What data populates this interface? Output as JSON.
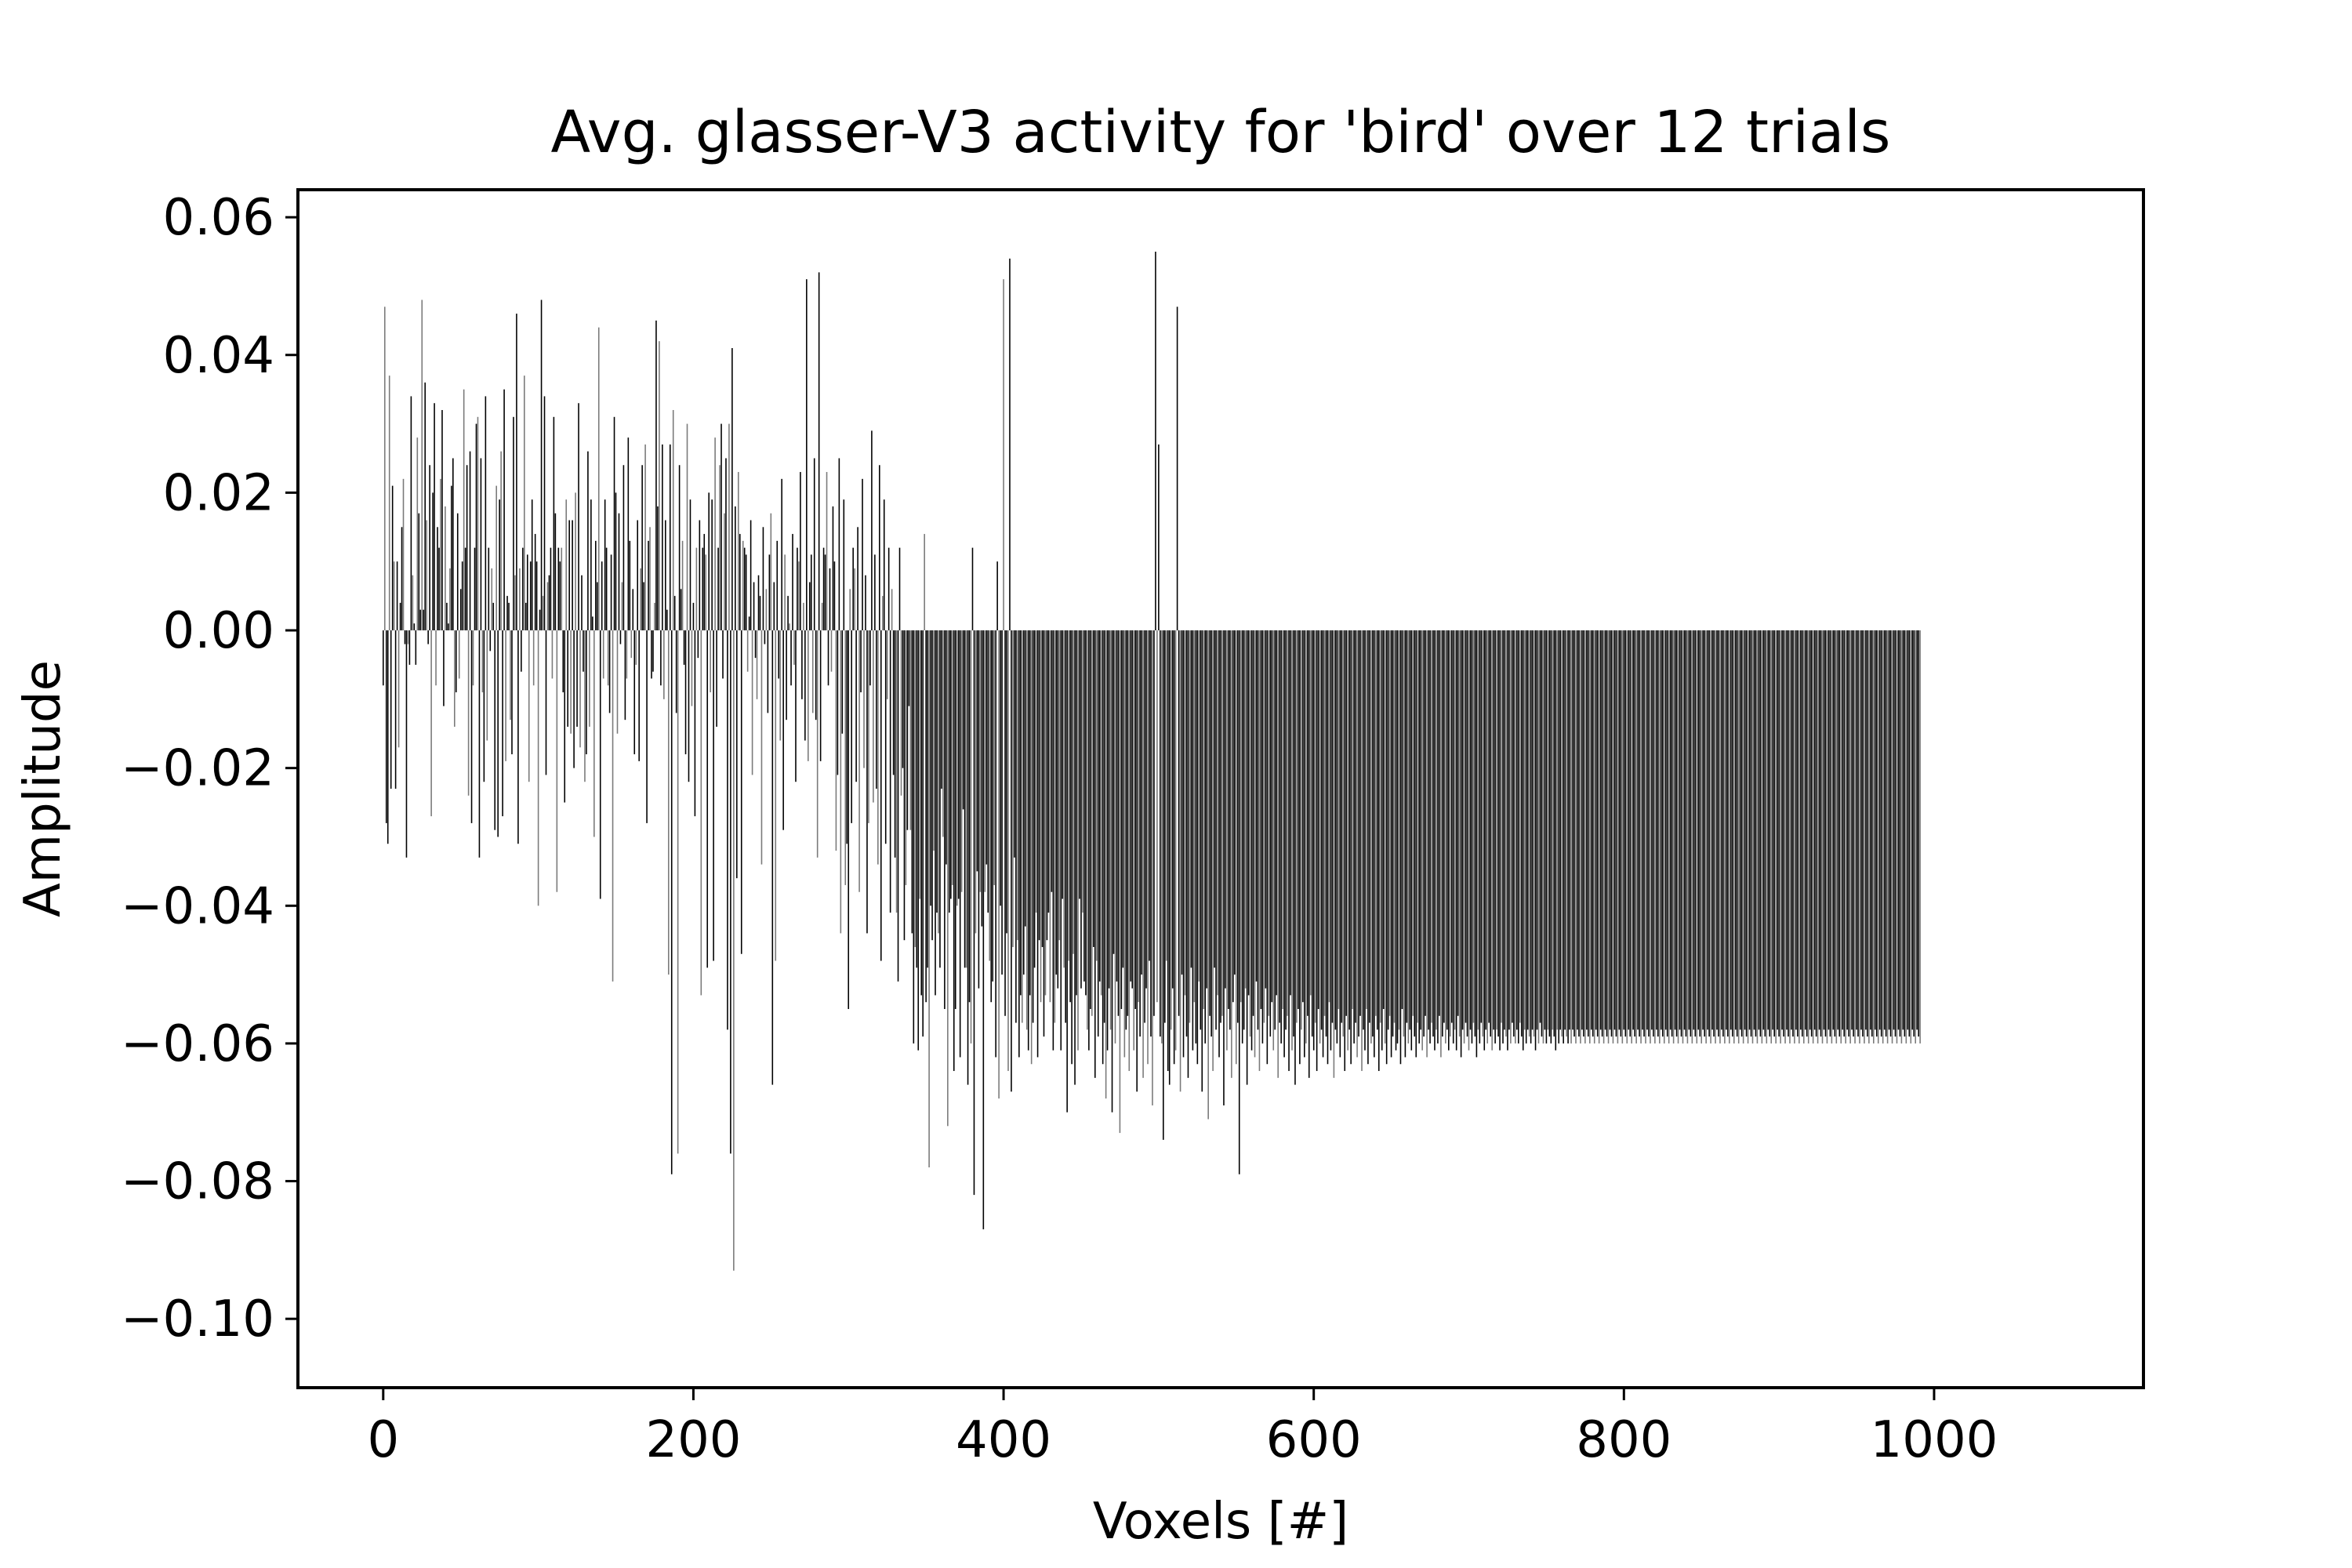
{
  "chart_data": {
    "type": "bar",
    "title": "Avg. glasser-V3 activity for 'bird' over 12 trials",
    "xlabel": "Voxels [#]",
    "ylabel": "Amplitude",
    "xlim": [
      -55,
      1135
    ],
    "ylim": [
      -0.11,
      0.064
    ],
    "x_ticks": [
      0,
      200,
      400,
      600,
      800,
      1000
    ],
    "x_tick_labels": [
      "0",
      "200",
      "400",
      "600",
      "800",
      "1000"
    ],
    "y_ticks": [
      0.06,
      0.04,
      0.02,
      0.0,
      -0.02,
      -0.04,
      -0.06,
      -0.08,
      -0.1
    ],
    "y_tick_labels": [
      "0.06",
      "0.04",
      "0.02",
      "0.00",
      "−0.02",
      "−0.04",
      "−0.06",
      "−0.08",
      "−0.10"
    ],
    "grid": false,
    "legend": "none",
    "colors": {
      "bar_dark": "#000000",
      "bar_light": "#7a7a7a"
    },
    "x_start": 0,
    "values": [
      -0.008,
      0.047,
      -0.028,
      -0.031,
      0.037,
      -0.023,
      0.021,
      0.01,
      -0.023,
      0.01,
      -0.017,
      0.004,
      0.015,
      0.022,
      -0.002,
      -0.033,
      -0.002,
      -0.005,
      0.034,
      0.008,
      0.001,
      -0.005,
      0.028,
      0.017,
      0.003,
      0.048,
      0.003,
      0.036,
      0.016,
      -0.002,
      0.024,
      -0.027,
      0.02,
      0.033,
      -0.008,
      0.015,
      0.012,
      0.022,
      0.032,
      -0.011,
      0.018,
      0.004,
      0.001,
      0.009,
      0.021,
      0.025,
      -0.014,
      -0.009,
      0.017,
      -0.007,
      0.006,
      0.01,
      0.035,
      0.012,
      0.024,
      -0.024,
      0.026,
      -0.028,
      -0.008,
      0.012,
      0.03,
      0.031,
      -0.033,
      0.025,
      -0.009,
      -0.022,
      0.034,
      -0.016,
      0.012,
      -0.003,
      0.009,
      0.004,
      -0.029,
      0.021,
      -0.03,
      0.019,
      0.026,
      -0.027,
      0.035,
      -0.019,
      0.005,
      0.004,
      -0.013,
      -0.018,
      0.031,
      0.008,
      0.046,
      -0.031,
      0.009,
      -0.006,
      0.012,
      0.037,
      0.004,
      0.011,
      -0.022,
      0.01,
      0.019,
      -0.008,
      0.014,
      0.01,
      -0.04,
      0.003,
      0.048,
      0.005,
      0.034,
      -0.021,
      0.007,
      0.008,
      0.012,
      -0.007,
      0.031,
      0.017,
      -0.038,
      0.012,
      0.01,
      0.012,
      -0.009,
      -0.025,
      0.019,
      -0.014,
      0.016,
      -0.015,
      0.016,
      -0.02,
      0.02,
      -0.014,
      0.033,
      -0.017,
      0.008,
      -0.006,
      -0.022,
      -0.018,
      0.026,
      -0.014,
      0.019,
      0.002,
      -0.03,
      0.013,
      0.007,
      0.044,
      -0.039,
      0.01,
      -0.007,
      0.019,
      0.012,
      -0.008,
      -0.012,
      0.011,
      -0.051,
      0.031,
      0.02,
      -0.015,
      0.017,
      -0.002,
      0.007,
      0.024,
      -0.013,
      -0.007,
      0.028,
      0.013,
      -0.004,
      0.006,
      -0.018,
      -0.005,
      0.016,
      -0.019,
      0.009,
      0.024,
      0.007,
      0.027,
      -0.028,
      0.013,
      0.015,
      -0.007,
      -0.006,
      0.004,
      0.045,
      0.018,
      0.042,
      -0.008,
      0.027,
      -0.01,
      0.016,
      0.003,
      -0.05,
      0.027,
      -0.079,
      0.032,
      0.005,
      -0.012,
      -0.076,
      0.024,
      0.006,
      0.013,
      -0.005,
      -0.018,
      0.03,
      -0.022,
      0.019,
      -0.011,
      0.004,
      -0.027,
      0.012,
      -0.004,
      0.016,
      -0.053,
      0.012,
      0.014,
      0.011,
      -0.049,
      0.02,
      -0.009,
      0.019,
      -0.048,
      0.028,
      -0.014,
      0.012,
      0.024,
      0.03,
      -0.007,
      0.017,
      0.025,
      -0.058,
      0.03,
      -0.076,
      0.041,
      -0.093,
      0.018,
      -0.036,
      0.023,
      0.014,
      -0.047,
      0.013,
      0.012,
      0.011,
      -0.006,
      0.002,
      0.016,
      -0.021,
      0.007,
      -0.004,
      -0.01,
      0.008,
      0.005,
      -0.034,
      0.015,
      -0.002,
      0.006,
      -0.012,
      0.011,
      0.017,
      -0.066,
      0.007,
      -0.048,
      0.013,
      -0.007,
      -0.016,
      0.022,
      -0.029,
      0.011,
      -0.013,
      0.005,
      0.001,
      -0.008,
      0.014,
      -0.005,
      -0.022,
      0.012,
      0.01,
      0.023,
      -0.01,
      0.004,
      -0.016,
      0.051,
      -0.019,
      0.007,
      0.011,
      -0.012,
      0.025,
      -0.013,
      -0.033,
      0.052,
      -0.019,
      0.004,
      0.012,
      0.011,
      0.023,
      -0.008,
      0.009,
      -0.006,
      0.018,
      0.01,
      -0.032,
      -0.021,
      0.025,
      -0.044,
      -0.015,
      0.019,
      -0.037,
      -0.031,
      -0.055,
      0.006,
      -0.028,
      0.012,
      0.009,
      -0.022,
      0.015,
      -0.038,
      -0.009,
      0.022,
      -0.02,
      0.008,
      -0.044,
      -0.028,
      -0.008,
      0.029,
      -0.025,
      0.011,
      -0.023,
      -0.034,
      0.024,
      -0.048,
      0.005,
      0.019,
      -0.031,
      -0.01,
      0.012,
      -0.041,
      0.006,
      -0.021,
      -0.033,
      -0.041,
      -0.051,
      0.012,
      -0.024,
      -0.02,
      -0.045,
      -0.037,
      -0.029,
      -0.011,
      -0.029,
      -0.044,
      -0.06,
      -0.046,
      -0.049,
      -0.061,
      -0.039,
      -0.053,
      -0.059,
      0.014,
      -0.054,
      -0.049,
      -0.078,
      -0.04,
      -0.045,
      -0.032,
      -0.053,
      -0.041,
      -0.044,
      -0.049,
      -0.023,
      -0.03,
      -0.055,
      -0.034,
      -0.072,
      -0.041,
      -0.039,
      -0.037,
      -0.064,
      -0.055,
      -0.04,
      -0.039,
      -0.062,
      -0.038,
      -0.026,
      -0.049,
      -0.049,
      -0.066,
      -0.054,
      -0.06,
      0.012,
      -0.082,
      -0.044,
      -0.035,
      -0.052,
      -0.038,
      -0.043,
      -0.087,
      -0.038,
      -0.034,
      -0.041,
      -0.048,
      -0.054,
      -0.051,
      -0.037,
      -0.062,
      0.01,
      -0.068,
      -0.04,
      -0.05,
      0.051,
      -0.056,
      -0.044,
      -0.064,
      0.054,
      -0.067,
      -0.046,
      -0.033,
      -0.057,
      -0.045,
      -0.062,
      -0.053,
      -0.057,
      -0.05,
      -0.043,
      -0.058,
      -0.061,
      -0.053,
      -0.063,
      -0.057,
      -0.049,
      -0.041,
      -0.062,
      -0.045,
      -0.054,
      -0.046,
      -0.059,
      -0.053,
      -0.045,
      -0.041,
      -0.054,
      -0.038,
      -0.061,
      -0.057,
      -0.05,
      -0.052,
      -0.045,
      -0.061,
      -0.039,
      -0.049,
      -0.057,
      -0.07,
      -0.048,
      -0.054,
      -0.063,
      -0.047,
      -0.066,
      -0.053,
      -0.061,
      -0.039,
      -0.052,
      -0.041,
      -0.051,
      -0.053,
      -0.058,
      -0.061,
      -0.055,
      -0.056,
      -0.046,
      -0.065,
      -0.048,
      -0.059,
      -0.051,
      -0.053,
      -0.063,
      -0.057,
      -0.068,
      -0.061,
      -0.052,
      -0.058,
      -0.07,
      -0.047,
      -0.06,
      -0.051,
      -0.056,
      -0.073,
      -0.055,
      -0.049,
      -0.062,
      -0.058,
      -0.056,
      -0.064,
      -0.051,
      -0.052,
      -0.061,
      -0.055,
      -0.067,
      -0.054,
      -0.059,
      -0.05,
      -0.065,
      -0.057,
      -0.052,
      -0.063,
      -0.048,
      -0.059,
      -0.069,
      -0.056,
      0.055,
      -0.054,
      0.027,
      -0.059,
      -0.06,
      -0.074,
      -0.057,
      -0.048,
      -0.064,
      -0.066,
      -0.058,
      -0.052,
      -0.063,
      -0.061,
      0.047,
      -0.056,
      -0.067,
      -0.05,
      -0.062,
      -0.053,
      -0.059,
      -0.065,
      -0.057,
      -0.049,
      -0.061,
      -0.054,
      -0.06,
      -0.063,
      -0.051,
      -0.058,
      -0.067,
      -0.055,
      -0.06,
      -0.052,
      -0.071,
      -0.056,
      -0.059,
      -0.064,
      -0.049,
      -0.058,
      -0.053,
      -0.062,
      -0.057,
      -0.056,
      -0.069,
      -0.052,
      -0.061,
      -0.055,
      -0.058,
      -0.065,
      -0.054,
      -0.05,
      -0.063,
      -0.057,
      -0.079,
      -0.054,
      -0.06,
      -0.058,
      -0.052,
      -0.066,
      -0.053,
      -0.059,
      -0.061,
      -0.056,
      -0.062,
      -0.051,
      -0.058,
      -0.064,
      -0.055,
      -0.06,
      -0.057,
      -0.052,
      -0.063,
      -0.056,
      -0.059,
      -0.054,
      -0.061,
      -0.058,
      -0.053,
      -0.065,
      -0.057,
      -0.06,
      -0.055,
      -0.062,
      -0.058,
      -0.056,
      -0.064,
      -0.053,
      -0.061,
      -0.059,
      -0.066,
      -0.057,
      -0.055,
      -0.063,
      -0.058,
      -0.054,
      -0.062,
      -0.06,
      -0.056,
      -0.065,
      -0.053,
      -0.059,
      -0.061,
      -0.057,
      -0.064,
      -0.055,
      -0.06,
      -0.058,
      -0.062,
      -0.056,
      -0.059,
      -0.063,
      -0.054,
      -0.061,
      -0.057,
      -0.065,
      -0.058,
      -0.06,
      -0.055,
      -0.062,
      -0.057,
      -0.059,
      -0.064,
      -0.056,
      -0.061,
      -0.058,
      -0.063,
      -0.055,
      -0.06,
      -0.057,
      -0.062,
      -0.059,
      -0.056,
      -0.064,
      -0.058,
      -0.061,
      -0.055,
      -0.063,
      -0.057,
      -0.06,
      -0.059,
      -0.062,
      -0.056,
      -0.058,
      -0.064,
      -0.057,
      -0.061,
      -0.055,
      -0.06,
      -0.063,
      -0.058,
      -0.056,
      -0.062,
      -0.059,
      -0.057,
      -0.061,
      -0.06,
      -0.058,
      -0.063,
      -0.055,
      -0.059,
      -0.062,
      -0.057,
      -0.06,
      -0.058,
      -0.061,
      -0.056,
      -0.059,
      -0.062,
      -0.057,
      -0.06,
      -0.058,
      -0.061,
      -0.059,
      -0.056,
      -0.062,
      -0.058,
      -0.06,
      -0.057,
      -0.059,
      -0.061,
      -0.058,
      -0.06,
      -0.056,
      -0.062,
      -0.059,
      -0.057,
      -0.06,
      -0.058,
      -0.061,
      -0.059,
      -0.057,
      -0.06,
      -0.058,
      -0.061,
      -0.056,
      -0.059,
      -0.062,
      -0.058,
      -0.06,
      -0.057,
      -0.059,
      -0.061,
      -0.058,
      -0.06,
      -0.057,
      -0.059,
      -0.062,
      -0.058,
      -0.06,
      -0.057,
      -0.059,
      -0.061,
      -0.058,
      -0.06,
      -0.057,
      -0.059,
      -0.061,
      -0.058,
      -0.06,
      -0.058,
      -0.059,
      -0.061,
      -0.057,
      -0.06,
      -0.058,
      -0.059,
      -0.061,
      -0.058,
      -0.06,
      -0.057,
      -0.059,
      -0.06,
      -0.058,
      -0.06,
      -0.057,
      -0.059,
      -0.061,
      -0.058,
      -0.06,
      -0.058,
      -0.059,
      -0.06,
      -0.058,
      -0.059,
      -0.061,
      -0.058,
      -0.06,
      -0.057,
      -0.059,
      -0.06,
      -0.058,
      -0.06,
      -0.058,
      -0.059,
      -0.06,
      -0.058,
      -0.059,
      -0.061,
      -0.058,
      -0.06,
      -0.058,
      -0.059,
      -0.06,
      -0.058,
      -0.059,
      -0.06,
      -0.058,
      -0.06,
      -0.058,
      -0.059,
      -0.06,
      -0.058,
      -0.059,
      -0.06,
      -0.058,
      -0.059,
      -0.06,
      -0.058,
      -0.059,
      -0.06,
      -0.058,
      -0.059,
      -0.06,
      -0.058,
      -0.059,
      -0.06,
      -0.058,
      -0.059,
      -0.06,
      -0.058,
      -0.059,
      -0.06,
      -0.058,
      -0.059,
      -0.06,
      -0.058,
      -0.059,
      -0.06,
      -0.058,
      -0.059,
      -0.06,
      -0.058,
      -0.059,
      -0.06,
      -0.058,
      -0.059,
      -0.06,
      -0.058,
      -0.059,
      -0.06,
      -0.058,
      -0.059,
      -0.06,
      -0.058,
      -0.059,
      -0.06,
      -0.058,
      -0.059,
      -0.06,
      -0.058,
      -0.059,
      -0.06,
      -0.058,
      -0.059,
      -0.06,
      -0.058,
      -0.059,
      -0.06,
      -0.058,
      -0.059,
      -0.06,
      -0.058,
      -0.059,
      -0.06,
      -0.058,
      -0.059,
      -0.06,
      -0.058,
      -0.059,
      -0.06,
      -0.058,
      -0.059,
      -0.06,
      -0.058,
      -0.059,
      -0.06,
      -0.058,
      -0.059,
      -0.06,
      -0.058,
      -0.059,
      -0.06,
      -0.058,
      -0.059,
      -0.06,
      -0.058,
      -0.059,
      -0.06,
      -0.058,
      -0.059,
      -0.06,
      -0.058,
      -0.059,
      -0.06,
      -0.058,
      -0.059,
      -0.06,
      -0.058,
      -0.059,
      -0.06,
      -0.058,
      -0.059,
      -0.06,
      -0.058,
      -0.059,
      -0.06,
      -0.058,
      -0.059,
      -0.06,
      -0.058,
      -0.059,
      -0.06,
      -0.058,
      -0.059,
      -0.06,
      -0.058,
      -0.059,
      -0.06,
      -0.058,
      -0.059,
      -0.06,
      -0.058,
      -0.059,
      -0.06,
      -0.058,
      -0.059,
      -0.06,
      -0.058,
      -0.059,
      -0.06,
      -0.058,
      -0.059,
      -0.06,
      -0.058,
      -0.059,
      -0.06,
      -0.058,
      -0.059,
      -0.06,
      -0.058,
      -0.059,
      -0.06,
      -0.058,
      -0.059,
      -0.06,
      -0.058,
      -0.059,
      -0.06,
      -0.058,
      -0.059,
      -0.06,
      -0.058,
      -0.059,
      -0.06,
      -0.058,
      -0.059,
      -0.06,
      -0.058,
      -0.059,
      -0.06,
      -0.058,
      -0.059,
      -0.06,
      -0.058,
      -0.059,
      -0.06,
      -0.058,
      -0.059,
      -0.06,
      -0.058,
      -0.059,
      -0.06,
      -0.058,
      -0.059,
      -0.06,
      -0.058,
      -0.059,
      -0.06,
      -0.058,
      -0.059,
      -0.06,
      -0.058,
      -0.059,
      -0.06,
      -0.058,
      -0.059,
      -0.06,
      -0.058,
      -0.059,
      -0.06,
      -0.058,
      -0.059,
      -0.06,
      -0.058,
      -0.059,
      -0.06,
      -0.058,
      -0.059,
      -0.06,
      -0.058,
      -0.059,
      -0.06,
      -0.058,
      -0.059,
      -0.06,
      -0.058,
      -0.059,
      -0.06,
      -0.058,
      -0.059,
      -0.06,
      -0.058,
      -0.059,
      -0.06,
      -0.058,
      -0.059,
      -0.06,
      -0.058,
      -0.059,
      -0.06,
      -0.058,
      -0.059,
      -0.06
    ]
  }
}
